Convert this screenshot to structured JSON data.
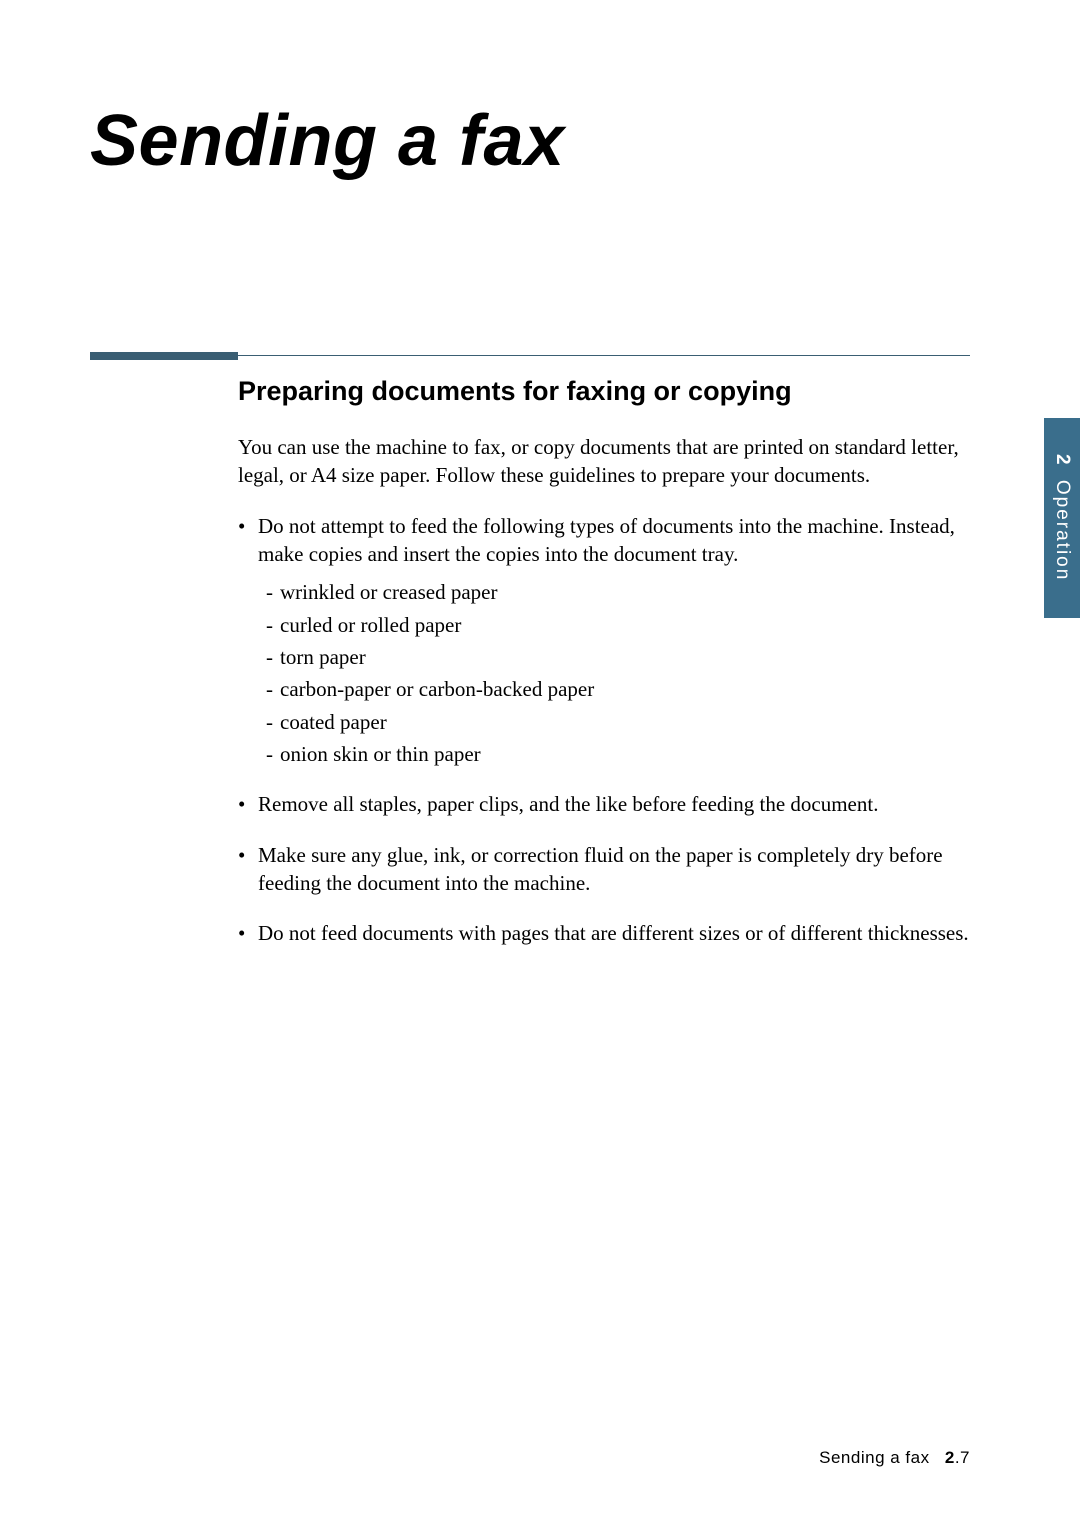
{
  "colors": {
    "rule": "#3a5e73",
    "tab_bg": "#3a6e8c",
    "tab_text": "#ffffff",
    "text": "#000000",
    "page_bg": "#ffffff"
  },
  "typography": {
    "chapter_title_fontsize": 72,
    "section_heading_fontsize": 27,
    "body_fontsize": 21,
    "footer_fontsize": 17,
    "tab_fontsize": 19,
    "body_font": "Book Antiqua / Palatino serif",
    "heading_font": "Arial / Helvetica sans-serif"
  },
  "chapter": {
    "title": "Sending a fax"
  },
  "section": {
    "heading": "Preparing documents for faxing or copying",
    "intro": "You can use the machine to fax, or copy documents that are printed on standard letter, legal, or A4 size paper. Follow these guidelines to prepare your documents.",
    "bullets": [
      {
        "text": "Do not attempt to feed the following types of documents into the machine. Instead, make copies and insert the copies into the document tray.",
        "sublist": [
          "wrinkled or creased paper",
          "curled or rolled paper",
          "torn paper",
          "carbon-paper or carbon-backed paper",
          "coated paper",
          "onion skin or thin paper"
        ]
      },
      {
        "text": "Remove all staples, paper clips, and the like before feeding the document."
      },
      {
        "text": "Make sure any glue, ink, or correction fluid on the paper is completely dry before feeding the document into the machine."
      },
      {
        "text": "Do not feed documents with pages that are different sizes or of different thicknesses."
      }
    ]
  },
  "side_tab": {
    "chapter_number": "2",
    "label": "Operation"
  },
  "footer": {
    "section_name": "Sending a fax",
    "chapter_number": "2",
    "page_in_chapter": ".7"
  }
}
